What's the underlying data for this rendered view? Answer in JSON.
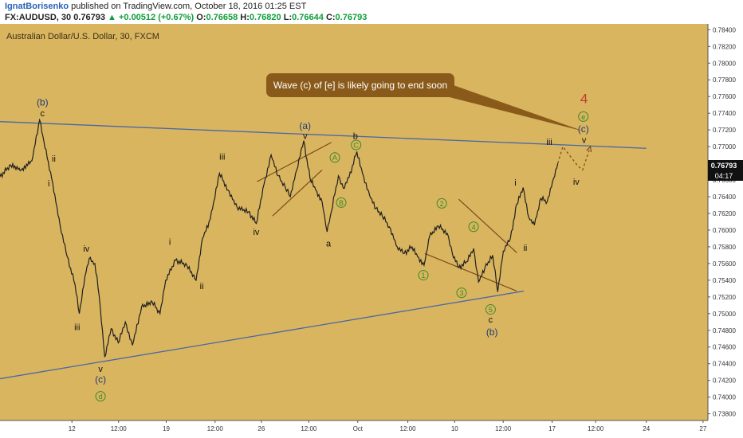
{
  "header": {
    "author": "IgnatBorisenko",
    "published_text": "published on TradingView.com, October 18, 2016 01:25 EST",
    "symbol": "FX:AUDUSD, 30",
    "last": "0.76793",
    "change": "+0.00512 (+0.67%)",
    "o_label": "O:",
    "o": "0.76658",
    "h_label": "H:",
    "h": "0.76820",
    "l_label": "L:",
    "l": "0.76644",
    "c_label": "C:",
    "c": "0.76793"
  },
  "legend_title": "Australian Dollar/U.S. Dollar, 30, FXCM",
  "callout_text": "Wave (c) of [e] is likely going to end soon",
  "price_tag": "0.76793",
  "countdown_tag": "04:17",
  "colors": {
    "background": "#d9b55f",
    "price_line": "#1f1f1f",
    "trendline": "#4a67a6",
    "channel": "#7a4a1c",
    "callout": "#8a5a1a",
    "wave_circle": "#3a8a2a",
    "wave_red": "#c0392b",
    "wave_blue": "#1f3a7a"
  },
  "chart_data": {
    "type": "line",
    "title": "Australian Dollar/U.S. Dollar, 30, FXCM",
    "ylim": [
      0.7372,
      0.7847
    ],
    "y_ticks": [
      "0.78400",
      "0.78200",
      "0.78000",
      "0.77800",
      "0.77600",
      "0.77400",
      "0.77200",
      "0.77000",
      "0.76800",
      "0.76600",
      "0.76400",
      "0.76200",
      "0.76000",
      "0.75800",
      "0.75600",
      "0.75400",
      "0.75200",
      "0.75000",
      "0.74800",
      "0.74600",
      "0.74400",
      "0.74200",
      "0.74000",
      "0.73800"
    ],
    "x_ticks": [
      "12",
      "12:00",
      "19",
      "12:00",
      "26",
      "12:00",
      "Oct",
      "12:00",
      "10",
      "12:00",
      "17",
      "12:00",
      "24",
      "27"
    ],
    "x_span": [
      0,
      100
    ],
    "x_tick_pos": [
      10.16,
      16.75,
      23.48,
      30.38,
      36.92,
      43.62,
      50.54,
      57.61,
      64.22,
      71.08,
      77.99,
      84.14,
      91.3,
      99.31
    ],
    "price": [
      [
        0.0,
        0.7664
      ],
      [
        1.5,
        0.7678
      ],
      [
        3.0,
        0.7672
      ],
      [
        4.5,
        0.7683
      ],
      [
        5.6,
        0.7732
      ],
      [
        6.2,
        0.7706
      ],
      [
        7.3,
        0.7662
      ],
      [
        8.5,
        0.7605
      ],
      [
        9.5,
        0.7568
      ],
      [
        10.6,
        0.7535
      ],
      [
        11.2,
        0.75
      ],
      [
        12.0,
        0.7545
      ],
      [
        12.6,
        0.7566
      ],
      [
        13.4,
        0.756
      ],
      [
        14.0,
        0.7522
      ],
      [
        14.8,
        0.7448
      ],
      [
        15.7,
        0.7482
      ],
      [
        16.7,
        0.7465
      ],
      [
        17.7,
        0.749
      ],
      [
        18.7,
        0.7462
      ],
      [
        20.0,
        0.7508
      ],
      [
        21.5,
        0.7514
      ],
      [
        22.6,
        0.75
      ],
      [
        23.4,
        0.754
      ],
      [
        24.8,
        0.7564
      ],
      [
        26.4,
        0.7558
      ],
      [
        27.7,
        0.754
      ],
      [
        28.6,
        0.759
      ],
      [
        29.7,
        0.7613
      ],
      [
        31.0,
        0.7668
      ],
      [
        32.2,
        0.7648
      ],
      [
        33.5,
        0.7627
      ],
      [
        35.1,
        0.7622
      ],
      [
        36.2,
        0.7608
      ],
      [
        37.3,
        0.7655
      ],
      [
        38.3,
        0.769
      ],
      [
        39.3,
        0.7665
      ],
      [
        40.3,
        0.7651
      ],
      [
        41.0,
        0.764
      ],
      [
        41.9,
        0.7672
      ],
      [
        42.9,
        0.7707
      ],
      [
        43.8,
        0.7662
      ],
      [
        44.6,
        0.7648
      ],
      [
        45.5,
        0.7634
      ],
      [
        46.2,
        0.7598
      ],
      [
        46.8,
        0.7622
      ],
      [
        47.8,
        0.7665
      ],
      [
        48.5,
        0.765
      ],
      [
        49.3,
        0.7663
      ],
      [
        50.4,
        0.7694
      ],
      [
        51.2,
        0.7668
      ],
      [
        52.2,
        0.7642
      ],
      [
        53.1,
        0.7626
      ],
      [
        54.0,
        0.7617
      ],
      [
        55.0,
        0.7604
      ],
      [
        56.1,
        0.758
      ],
      [
        57.1,
        0.7572
      ],
      [
        58.2,
        0.758
      ],
      [
        59.0,
        0.7568
      ],
      [
        59.9,
        0.7558
      ],
      [
        60.7,
        0.7593
      ],
      [
        61.9,
        0.7605
      ],
      [
        63.2,
        0.7596
      ],
      [
        63.9,
        0.7572
      ],
      [
        64.8,
        0.7555
      ],
      [
        65.9,
        0.7562
      ],
      [
        66.9,
        0.7578
      ],
      [
        67.6,
        0.7538
      ],
      [
        68.5,
        0.7555
      ],
      [
        69.6,
        0.757
      ],
      [
        70.3,
        0.7526
      ],
      [
        71.1,
        0.7575
      ],
      [
        72.1,
        0.759
      ],
      [
        73.0,
        0.7631
      ],
      [
        73.9,
        0.7651
      ],
      [
        74.7,
        0.7615
      ],
      [
        75.5,
        0.7606
      ],
      [
        76.4,
        0.7638
      ],
      [
        77.3,
        0.7634
      ],
      [
        78.2,
        0.7662
      ],
      [
        78.8,
        0.768
      ]
    ],
    "projection": [
      [
        78.8,
        0.768
      ],
      [
        79.5,
        0.77
      ],
      [
        81.6,
        0.7677
      ],
      [
        82.3,
        0.7672
      ],
      [
        83.4,
        0.77
      ]
    ],
    "trendlines": [
      {
        "role": "upper",
        "from": [
          0,
          0.773
        ],
        "to": [
          91.3,
          0.7698
        ]
      },
      {
        "role": "lower",
        "from": [
          0,
          0.7422
        ],
        "to": [
          74.0,
          0.7527
        ]
      }
    ],
    "channels": [
      [
        [
          36.3,
          0.7658
        ],
        [
          46.8,
          0.7705
        ]
      ],
      [
        [
          38.5,
          0.7617
        ],
        [
          45.5,
          0.7672
        ]
      ],
      [
        [
          60.0,
          0.7572
        ],
        [
          73.0,
          0.7527
        ]
      ],
      [
        [
          64.8,
          0.7637
        ],
        [
          73.0,
          0.7573
        ]
      ]
    ],
    "callout_pointer": [
      82.6,
      0.7718
    ],
    "wave_labels": [
      {
        "text": "(b)",
        "at": [
          6.0,
          0.7753
        ],
        "style": "blue"
      },
      {
        "text": "c",
        "at": [
          6.0,
          0.774
        ],
        "style": "plain"
      },
      {
        "text": "ii",
        "at": [
          7.6,
          0.7686
        ],
        "style": "plain"
      },
      {
        "text": "i",
        "at": [
          6.9,
          0.7656
        ],
        "style": "plain"
      },
      {
        "text": "iv",
        "at": [
          12.2,
          0.7578
        ],
        "style": "plain"
      },
      {
        "text": "iii",
        "at": [
          10.9,
          0.7484
        ],
        "style": "plain"
      },
      {
        "text": "v",
        "at": [
          14.2,
          0.7434
        ],
        "style": "plain"
      },
      {
        "text": "(c)",
        "at": [
          14.2,
          0.7421
        ],
        "style": "blue"
      },
      {
        "text": "d",
        "at": [
          14.2,
          0.7401
        ],
        "style": "circle"
      },
      {
        "text": "i",
        "at": [
          24.0,
          0.7586
        ],
        "style": "plain"
      },
      {
        "text": "ii",
        "at": [
          28.5,
          0.7533
        ],
        "style": "plain"
      },
      {
        "text": "iii",
        "at": [
          31.4,
          0.7688
        ],
        "style": "plain"
      },
      {
        "text": "iv",
        "at": [
          36.2,
          0.7598
        ],
        "style": "plain"
      },
      {
        "text": "(a)",
        "at": [
          43.1,
          0.7725
        ],
        "style": "blue"
      },
      {
        "text": "v",
        "at": [
          43.1,
          0.7713
        ],
        "style": "plain"
      },
      {
        "text": "A",
        "at": [
          47.3,
          0.7687
        ],
        "style": "circle"
      },
      {
        "text": "B",
        "at": [
          48.2,
          0.7633
        ],
        "style": "circle"
      },
      {
        "text": "a",
        "at": [
          46.4,
          0.7584
        ],
        "style": "plain"
      },
      {
        "text": "b",
        "at": [
          50.2,
          0.7713
        ],
        "style": "plain"
      },
      {
        "text": "C",
        "at": [
          50.3,
          0.7702
        ],
        "style": "circle"
      },
      {
        "text": "1",
        "at": [
          59.8,
          0.7546
        ],
        "style": "circle"
      },
      {
        "text": "2",
        "at": [
          62.4,
          0.7632
        ],
        "style": "circle"
      },
      {
        "text": "4",
        "at": [
          66.9,
          0.7604
        ],
        "style": "circle"
      },
      {
        "text": "3",
        "at": [
          65.2,
          0.7525
        ],
        "style": "circle"
      },
      {
        "text": "5",
        "at": [
          69.3,
          0.7505
        ],
        "style": "circle"
      },
      {
        "text": "c",
        "at": [
          69.3,
          0.7493
        ],
        "style": "plain"
      },
      {
        "text": "(b)",
        "at": [
          69.5,
          0.7478
        ],
        "style": "blue"
      },
      {
        "text": "i",
        "at": [
          72.8,
          0.7657
        ],
        "style": "plain"
      },
      {
        "text": "ii",
        "at": [
          74.2,
          0.7579
        ],
        "style": "plain"
      },
      {
        "text": "iii",
        "at": [
          77.6,
          0.7706
        ],
        "style": "plain"
      },
      {
        "text": "iv",
        "at": [
          81.4,
          0.7658
        ],
        "style": "plain"
      },
      {
        "text": "4",
        "at": [
          82.5,
          0.7758
        ],
        "style": "red"
      },
      {
        "text": "e",
        "at": [
          82.4,
          0.7736
        ],
        "style": "circle"
      },
      {
        "text": "(c)",
        "at": [
          82.4,
          0.7721
        ],
        "style": "blue"
      },
      {
        "text": "v",
        "at": [
          82.5,
          0.7708
        ],
        "style": "plain"
      }
    ]
  }
}
